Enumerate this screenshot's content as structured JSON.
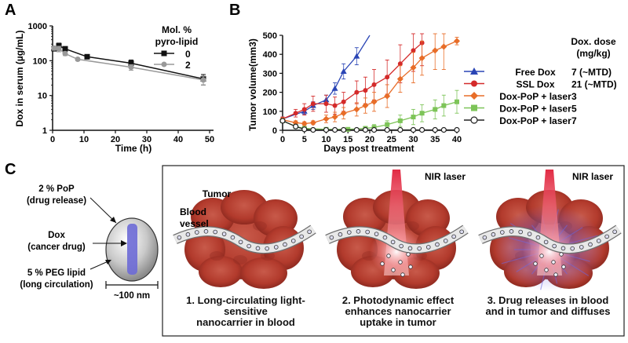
{
  "panels": {
    "a": "A",
    "b": "B",
    "c": "C"
  },
  "chart_data": [
    {
      "type": "line",
      "title": "",
      "xlabel": "Time (h)",
      "ylabel": "Dox in serum (µg/mL)",
      "yscale": "log",
      "xlim": [
        0,
        50
      ],
      "ylim": [
        1,
        1000
      ],
      "xticks": [
        "0",
        "10",
        "20",
        "30",
        "40",
        "50"
      ],
      "yticks": [
        "1",
        "10",
        "100",
        "1000"
      ],
      "legend_title": [
        "Mol. %",
        "pyro-lipid"
      ],
      "legend_position": "top-right",
      "series": [
        {
          "name": "0",
          "color": "#111111",
          "marker": "square",
          "x": [
            0.5,
            2,
            4,
            11,
            25,
            48
          ],
          "y": [
            220,
            270,
            220,
            130,
            85,
            30
          ],
          "err": [
            30,
            50,
            30,
            12,
            20,
            10
          ]
        },
        {
          "name": "2",
          "color": "#999999",
          "marker": "circle",
          "x": [
            0.5,
            2,
            4,
            8,
            25,
            48
          ],
          "y": [
            230,
            220,
            160,
            110,
            65,
            28
          ],
          "err": [
            30,
            40,
            20,
            10,
            12,
            8
          ]
        }
      ]
    },
    {
      "type": "line",
      "title": "",
      "xlabel": "Days post treatment",
      "ylabel": "Tumor volume(mm3)",
      "xlim": [
        0,
        40
      ],
      "ylim": [
        0,
        500
      ],
      "xticks": [
        "0",
        "5",
        "10",
        "15",
        "20",
        "25",
        "30",
        "35",
        "40"
      ],
      "yticks": [
        "0",
        "100",
        "200",
        "300",
        "400",
        "500"
      ],
      "legend_title": [
        "Dox. dose",
        "(mg/kg)"
      ],
      "legend_position": "right",
      "series": [
        {
          "name": "Free Dox",
          "dose": "7 (~MTD)",
          "color": "#2a45b5",
          "marker": "triangle",
          "x": [
            0,
            5,
            7,
            10,
            12,
            14,
            17
          ],
          "y": [
            60,
            100,
            130,
            160,
            220,
            310,
            390
          ],
          "err": [
            10,
            15,
            20,
            25,
            30,
            40,
            45
          ],
          "trend_end": [
            20,
            500
          ]
        },
        {
          "name": "SSL Dox",
          "dose": "21 (~MTD)",
          "color": "#d42a2a",
          "marker": "circle",
          "x": [
            0,
            3,
            5,
            7,
            10,
            12,
            14,
            17,
            19,
            21,
            24,
            27,
            30,
            32
          ],
          "y": [
            60,
            90,
            110,
            140,
            140,
            130,
            150,
            200,
            210,
            240,
            280,
            350,
            420,
            460
          ],
          "err": [
            10,
            20,
            30,
            40,
            45,
            45,
            50,
            60,
            70,
            80,
            90,
            100,
            110,
            120
          ]
        },
        {
          "name": "Dox-PoP + laser",
          "dose": "3",
          "color": "#e86d28",
          "marker": "diamond",
          "x": [
            0,
            3,
            5,
            7,
            10,
            12,
            14,
            17,
            19,
            21,
            24,
            27,
            30,
            32,
            35,
            37,
            40
          ],
          "y": [
            55,
            40,
            35,
            40,
            60,
            70,
            90,
            110,
            130,
            150,
            180,
            270,
            330,
            380,
            420,
            440,
            470
          ],
          "err": [
            10,
            10,
            10,
            10,
            20,
            25,
            30,
            35,
            40,
            50,
            60,
            70,
            80,
            90,
            100,
            120,
            20
          ]
        },
        {
          "name": "Dox-PoP + laser",
          "dose": "5",
          "color": "#7dc458",
          "marker": "square",
          "x": [
            0,
            3,
            5,
            10,
            15,
            19,
            21,
            24,
            27,
            30,
            32,
            35,
            37,
            40
          ],
          "y": [
            50,
            20,
            10,
            5,
            5,
            10,
            15,
            30,
            50,
            70,
            90,
            110,
            130,
            150
          ],
          "err": [
            10,
            10,
            5,
            5,
            5,
            10,
            15,
            20,
            30,
            40,
            45,
            50,
            55,
            60
          ]
        },
        {
          "name": "Dox-PoP + laser",
          "dose": "7",
          "color": "#222222",
          "marker": "open-circle",
          "x": [
            0,
            3,
            5,
            7,
            10,
            12,
            14,
            17,
            19,
            21,
            24,
            27,
            30,
            32,
            35,
            37,
            40
          ],
          "y": [
            50,
            20,
            5,
            2,
            2,
            2,
            2,
            2,
            2,
            2,
            2,
            2,
            2,
            2,
            2,
            2,
            2
          ],
          "err": [
            5,
            5,
            3,
            0,
            0,
            0,
            0,
            0,
            0,
            0,
            0,
            0,
            0,
            0,
            0,
            0,
            0
          ]
        }
      ]
    }
  ],
  "diagram": {
    "particle": {
      "pop": [
        "2 % PoP",
        "(drug release)"
      ],
      "dox": [
        "Dox",
        "(cancer drug)"
      ],
      "peg": [
        "5 % PEG lipid",
        "(long circulation)"
      ],
      "size": "~100 nm"
    },
    "scene1": {
      "tumor": "Tumor",
      "vessel": [
        "Blood",
        "vessel"
      ],
      "caption": [
        "1. Long-circulating light-sensitive",
        "nanocarrier in blood"
      ]
    },
    "scene2": {
      "laser": "NIR laser",
      "caption": [
        "2. Photodynamic effect",
        "enhances nanocarrier",
        "uptake in tumor"
      ]
    },
    "scene3": {
      "laser": "NIR laser",
      "caption": [
        "3. Drug releases in blood",
        "and in tumor and diffuses"
      ]
    }
  }
}
